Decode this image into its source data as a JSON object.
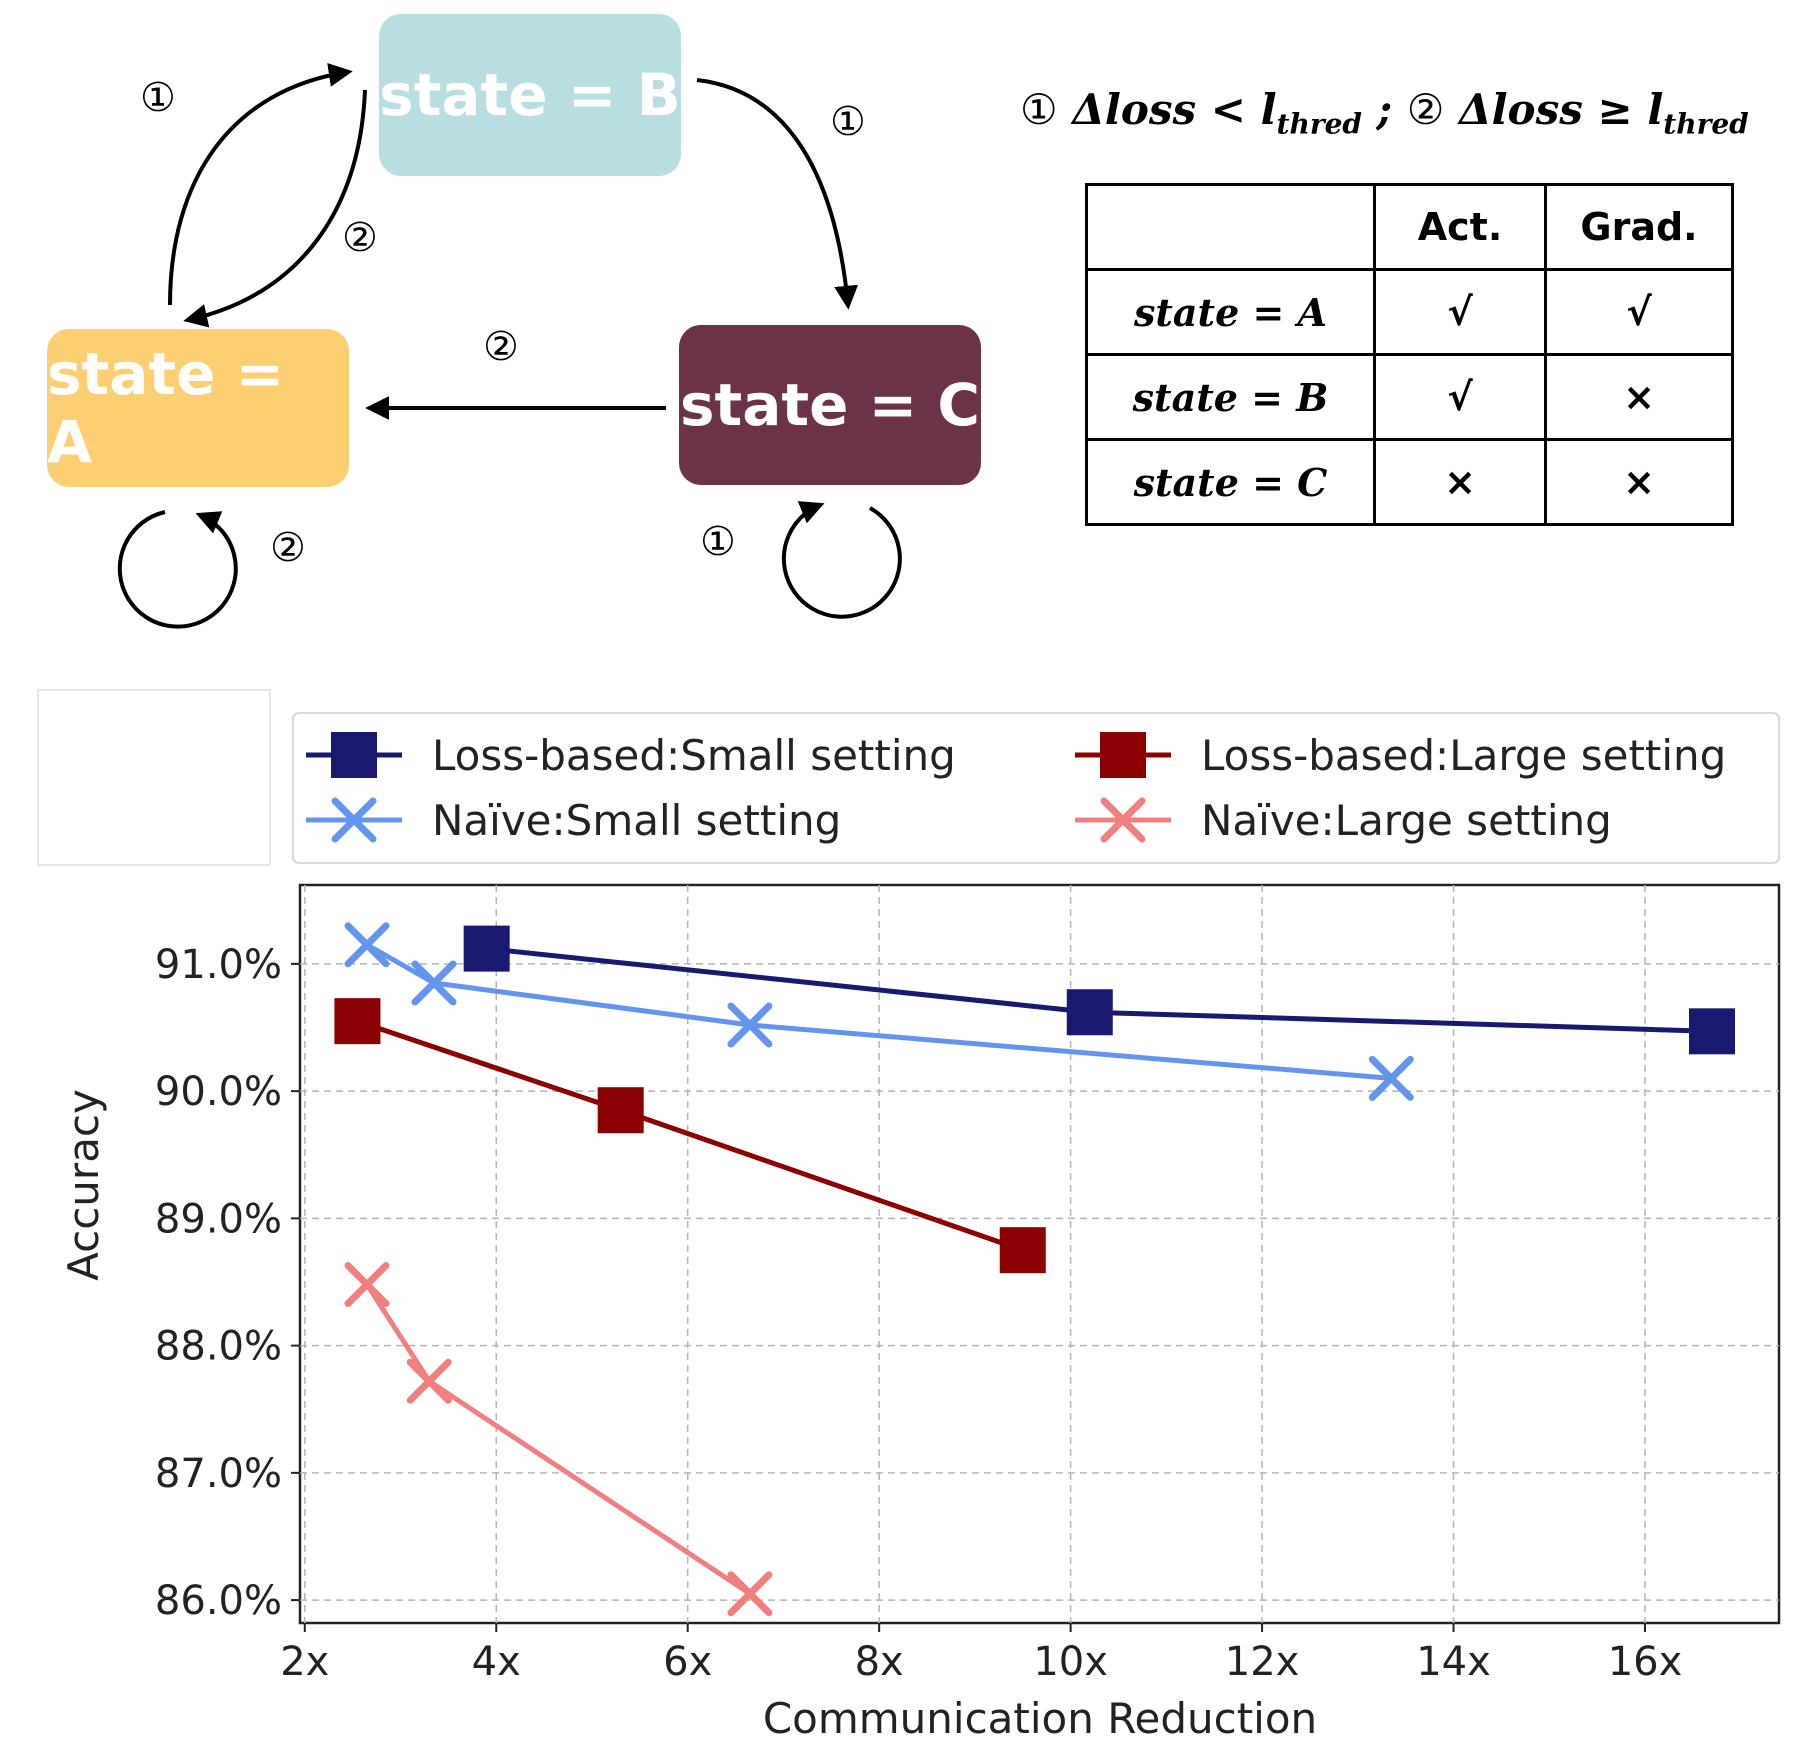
{
  "diagram": {
    "states": {
      "a": "state = A",
      "b": "state = B",
      "c": "state = C"
    },
    "markers": {
      "one": "①",
      "two": "②"
    },
    "condition_legend": {
      "one_symbol": "①",
      "one_lhs": "Δloss",
      "one_op": " < ",
      "one_rhs": "l",
      "one_sub": "thred",
      "separator": " ; ",
      "two_symbol": "②",
      "two_lhs": "Δloss",
      "two_op": " ≥ ",
      "two_rhs": "l",
      "two_sub": "thred"
    },
    "table": {
      "headers": [
        "",
        "Act.",
        "Grad."
      ],
      "rows": [
        [
          "state = A",
          "√",
          "√"
        ],
        [
          "state = B",
          "√",
          "×"
        ],
        [
          "state = C",
          "×",
          "×"
        ]
      ]
    }
  },
  "chart_data": {
    "type": "line",
    "xlabel": "Communication Reduction",
    "ylabel": "Accuracy",
    "xlim": [
      1.95,
      17.4
    ],
    "ylim": [
      85.82,
      91.62
    ],
    "xticks": [
      2,
      4,
      6,
      8,
      10,
      12,
      14,
      16
    ],
    "xtick_labels": [
      "2x",
      "4x",
      "6x",
      "8x",
      "10x",
      "12x",
      "14x",
      "16x"
    ],
    "yticks": [
      86,
      87,
      88,
      89,
      90,
      91
    ],
    "ytick_labels": [
      "86.0%",
      "87.0%",
      "88.0%",
      "89.0%",
      "90.0%",
      "91.0%"
    ],
    "grid": true,
    "legend_position": "top, above plot, two columns",
    "series": [
      {
        "name": "Loss-based:Small setting",
        "marker": "square",
        "color": "#191970",
        "x": [
          3.9,
          10.2,
          16.7
        ],
        "y": [
          91.12,
          90.62,
          90.47
        ]
      },
      {
        "name": "Naïve:Small setting",
        "marker": "x",
        "color": "#6495ed",
        "x": [
          2.65,
          3.35,
          6.65,
          13.35
        ],
        "y": [
          91.15,
          90.85,
          90.52,
          90.1
        ]
      },
      {
        "name": "Loss-based:Large setting",
        "marker": "square",
        "color": "#8b0000",
        "x": [
          2.55,
          5.3,
          9.5
        ],
        "y": [
          90.55,
          89.85,
          88.75
        ]
      },
      {
        "name": "Naïve:Large setting",
        "marker": "x",
        "color": "#f08080",
        "x": [
          2.65,
          3.3,
          6.65
        ],
        "y": [
          88.48,
          87.72,
          86.05
        ]
      }
    ]
  }
}
